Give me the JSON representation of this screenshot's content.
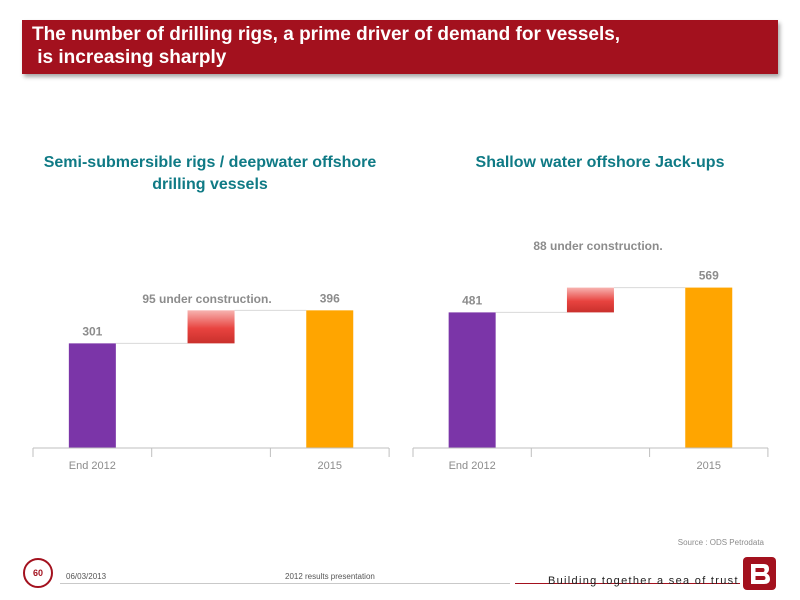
{
  "header": {
    "title": "The number of drilling rigs, a prime driver of demand for vessels,\n is increasing sharply"
  },
  "colors": {
    "title_bar": "#a3111e",
    "chart_title": "#0f7a85",
    "start_bar": "#7b35a8",
    "end_bar": "#ffa500",
    "delta_bar": "#e8433f"
  },
  "chart_data": [
    {
      "type": "bar",
      "subtype": "waterfall",
      "title": "Semi-submersible rigs / deepwater offshore drilling vessels",
      "categories": [
        "End 2012",
        "",
        "2015"
      ],
      "values": [
        301,
        95,
        396
      ],
      "data_labels": [
        "301",
        "",
        "396"
      ],
      "annotation": "95 under construction.",
      "ylim": [
        0,
        420
      ],
      "grid": false
    },
    {
      "type": "bar",
      "subtype": "waterfall",
      "title": "Shallow water offshore Jack-ups",
      "categories": [
        "End 2012",
        "",
        "2015"
      ],
      "values": [
        481,
        88,
        569
      ],
      "data_labels": [
        "481",
        "",
        "569"
      ],
      "annotation": "88 under construction.",
      "ylim": [
        0,
        603
      ],
      "grid": false
    }
  ],
  "footer": {
    "source": "Source : ODS Petrodata",
    "page_number": "60",
    "date": "06/03/2013",
    "presentation": "2012 results presentation",
    "tagline": "Building together a sea of trust",
    "logo_icon": "bourbon-b-logo-icon"
  }
}
